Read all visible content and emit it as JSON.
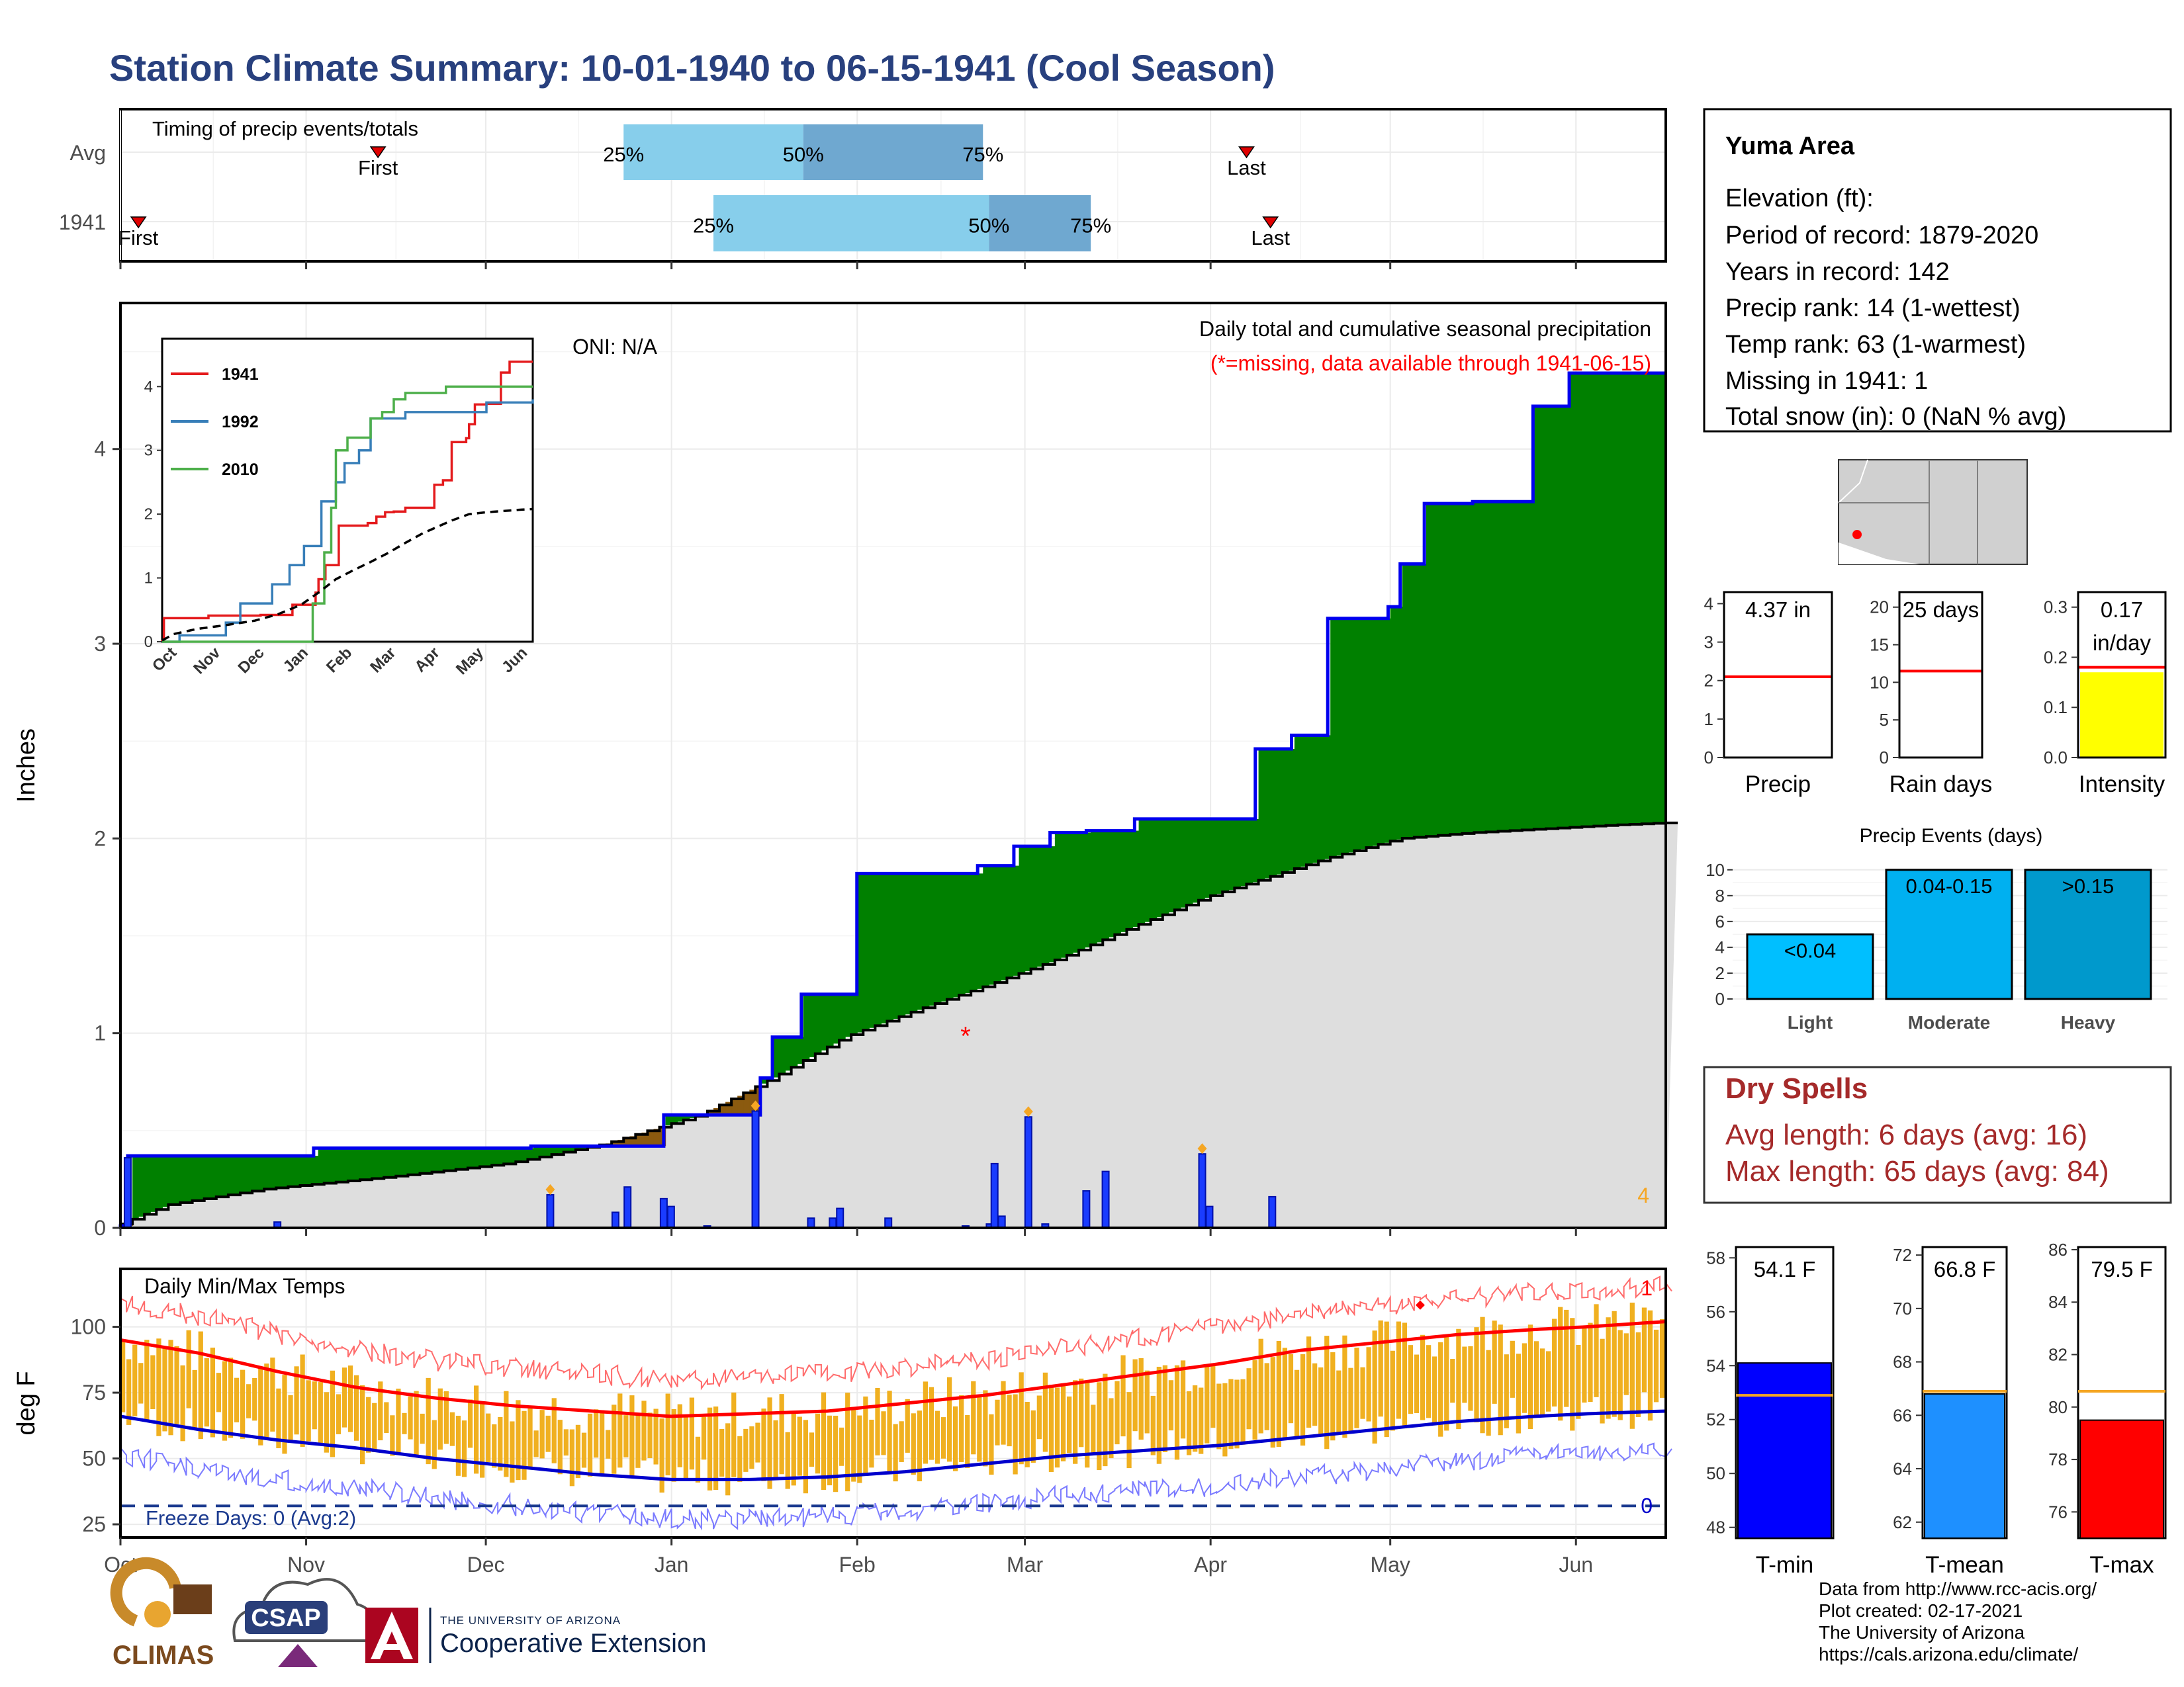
{
  "title": "Station Climate Summary: 10-01-1940 to 06-15-1941 (Cool Season)",
  "colors": {
    "title": "#28407e",
    "observed_fill": "#008000",
    "deficit_fill": "#8b5a0f",
    "normal_fill": "#dedede",
    "cum_line": "#0000ee",
    "daily_bar": "#1a3cff",
    "tmax_avg": "#ff0000",
    "tmin_avg": "#0000cc",
    "range_bars": "#f0b020",
    "dry": "#a52a2a"
  },
  "timing": {
    "label": "Timing of precip events/totals",
    "rows": [
      "Avg",
      "1941"
    ],
    "avg": {
      "first": "2000-11-13",
      "last": "2001-04-07",
      "q25": "2000-12-24",
      "q50": "2001-01-23",
      "q75": "2001-02-22",
      "labels": {
        "first": "First",
        "last": "Last",
        "q25": "25%",
        "q50": "50%",
        "q75": "75%"
      }
    },
    "year": {
      "first": "2000-10-04",
      "last": "2001-04-11",
      "q25": "2001-01-08",
      "q50": "2001-02-23",
      "q75": "2001-03-12",
      "labels": {
        "first": "First",
        "last": "Last",
        "q25": "25%",
        "q50": "50%",
        "q75": "75%"
      }
    }
  },
  "precip_panel": {
    "ylabel": "Inches",
    "oni": "ONI: N/A",
    "subtitle": "Daily total and cumulative seasonal precipitation",
    "missing_note": "(*=missing, data available through 1941-06-15)",
    "missing_count": "4",
    "yticks": [
      "0",
      "1",
      "2",
      "3",
      "4"
    ]
  },
  "temp_panel": {
    "title": "Daily Min/Max Temps",
    "ylabel": "deg F",
    "freeze": "Freeze Days: 0 (Avg:2)",
    "record_high_count": "1",
    "record_low_count": "0",
    "yticks": [
      "25",
      "50",
      "75",
      "100"
    ]
  },
  "months": [
    "Oct",
    "Nov",
    "Dec",
    "Jan",
    "Feb",
    "Mar",
    "Apr",
    "May",
    "Jun"
  ],
  "inset": {
    "legend": [
      "1941",
      "1992",
      "2010"
    ],
    "colors": [
      "#e41a1c",
      "#377eb8",
      "#4daf4a"
    ],
    "yticks": [
      "0",
      "1",
      "2",
      "3",
      "4"
    ],
    "months": [
      "Oct",
      "Nov",
      "Dec",
      "Jan",
      "Feb",
      "Mar",
      "Apr",
      "May",
      "Jun"
    ]
  },
  "station": {
    "name": "Yuma Area",
    "lines": [
      "Elevation (ft):",
      "Period of record: 1879-2020",
      "Years in record: 142",
      "Precip rank: 14 (1-wettest)",
      "Temp rank: 63 (1-warmest)",
      "Missing in 1941: 1",
      "Total snow (in): 0 (NaN % avg)"
    ]
  },
  "mini_bars": {
    "precip": {
      "label": "Precip",
      "value_text": "4.37 in",
      "value": 4.37,
      "avg": 2.1,
      "ymax": 4.3,
      "yticks": [
        "0",
        "1",
        "2",
        "3",
        "4"
      ]
    },
    "rain_days": {
      "label": "Rain days",
      "value_text": "25 days",
      "value": 25,
      "avg": 11.5,
      "ymax": 22,
      "yticks": [
        "0",
        "5",
        "10",
        "15",
        "20"
      ]
    },
    "intensity": {
      "label": "Intensity",
      "value_text_1": "0.17",
      "value_text_2": "in/day",
      "value": 0.17,
      "avg": 0.18,
      "ymax": 0.33,
      "yticks": [
        "0.0",
        "0.1",
        "0.2",
        "0.3"
      ]
    }
  },
  "events": {
    "title": "Precip Events (days)",
    "categories": [
      "Light",
      "Moderate",
      "Heavy"
    ],
    "labels": [
      "<0.04",
      "0.04-0.15",
      ">0.15"
    ],
    "values": [
      5,
      10,
      10
    ],
    "yticks": [
      "0",
      "2",
      "4",
      "6",
      "8",
      "10"
    ]
  },
  "dry_spells": {
    "title": "Dry Spells",
    "avg": "Avg length: 6 days (avg: 16)",
    "max": "Max length: 65 days (avg: 84)"
  },
  "temp_bars": [
    {
      "label": "T-min",
      "value_text": "54.1 F",
      "value": 54.1,
      "avg": 52.9,
      "ymin": 47.6,
      "ymax": 58.4,
      "yticks": [
        "48",
        "50",
        "52",
        "54",
        "56",
        "58"
      ],
      "color": "#0000ff"
    },
    {
      "label": "T-mean",
      "value_text": "66.8 F",
      "value": 66.8,
      "avg": 66.9,
      "ymin": 61.4,
      "ymax": 72.3,
      "yticks": [
        "62",
        "64",
        "66",
        "68",
        "70",
        "72"
      ],
      "color": "#1e90ff"
    },
    {
      "label": "T-max",
      "value_text": "79.5 F",
      "value": 79.5,
      "avg": 80.6,
      "ymin": 75.0,
      "ymax": 86.1,
      "yticks": [
        "76",
        "78",
        "80",
        "82",
        "84",
        "86"
      ],
      "color": "#ff0000"
    }
  ],
  "footer": [
    "Data from http://www.rcc-acis.org/",
    "Plot created: 02-17-2021",
    "The University of Arizona",
    "https://cals.arizona.edu/climate/"
  ],
  "logos": {
    "climas": "CLIMAS",
    "csap": "CSAP",
    "ua_small": "THE UNIVERSITY OF ARIZONA",
    "ua_big": "Cooperative Extension"
  },
  "chart_data": [
    {
      "type": "line",
      "title": "Daily total and cumulative seasonal precipitation",
      "ylabel": "Inches",
      "ylim": [
        0,
        4.75
      ],
      "x_start": "1940-10-01",
      "x_end": "1941-06-15",
      "cumulative_observed": [
        [
          0,
          0.01
        ],
        [
          3,
          0.37
        ],
        [
          80,
          0.41
        ],
        [
          170,
          0.42
        ],
        [
          225,
          0.58
        ],
        [
          265,
          0.77
        ],
        [
          270,
          0.98
        ],
        [
          282,
          1.2
        ],
        [
          305,
          1.82
        ],
        [
          355,
          1.86
        ],
        [
          370,
          1.96
        ],
        [
          385,
          2.03
        ],
        [
          400,
          2.04
        ],
        [
          420,
          2.1
        ],
        [
          470,
          2.46
        ],
        [
          485,
          2.53
        ],
        [
          500,
          3.13
        ],
        [
          525,
          3.19
        ],
        [
          530,
          3.41
        ],
        [
          540,
          3.72
        ],
        [
          560,
          3.73
        ],
        [
          585,
          4.22
        ],
        [
          600,
          4.39
        ],
        [
          625,
          4.39
        ],
        [
          640,
          4.39
        ]
      ],
      "cumulative_normal": [
        [
          0,
          0.02
        ],
        [
          20,
          0.12
        ],
        [
          60,
          0.2
        ],
        [
          110,
          0.26
        ],
        [
          160,
          0.33
        ],
        [
          200,
          0.43
        ],
        [
          240,
          0.58
        ],
        [
          270,
          0.77
        ],
        [
          300,
          0.98
        ],
        [
          330,
          1.12
        ],
        [
          360,
          1.25
        ],
        [
          390,
          1.39
        ],
        [
          420,
          1.55
        ],
        [
          450,
          1.7
        ],
        [
          480,
          1.82
        ],
        [
          500,
          1.9
        ],
        [
          530,
          2.0
        ],
        [
          560,
          2.03
        ],
        [
          590,
          2.05
        ],
        [
          620,
          2.07
        ],
        [
          640,
          2.08
        ]
      ],
      "daily_precip": [
        [
          3,
          0.36
        ],
        [
          65,
          0.03
        ],
        [
          178,
          0.17
        ],
        [
          205,
          0.08
        ],
        [
          210,
          0.21
        ],
        [
          225,
          0.15
        ],
        [
          228,
          0.11
        ],
        [
          243,
          0.01
        ],
        [
          263,
          0.6
        ],
        [
          286,
          0.05
        ],
        [
          295,
          0.05
        ],
        [
          298,
          0.1
        ],
        [
          318,
          0.05
        ],
        [
          350,
          0.01
        ],
        [
          360,
          0.02
        ],
        [
          362,
          0.33
        ],
        [
          365,
          0.06
        ],
        [
          376,
          0.57
        ],
        [
          383,
          0.02
        ],
        [
          400,
          0.19
        ],
        [
          408,
          0.29
        ],
        [
          448,
          0.38
        ],
        [
          451,
          0.11
        ],
        [
          477,
          0.16
        ]
      ],
      "missing_days": [
        350
      ]
    },
    {
      "type": "line",
      "title": "Daily Min/Max Temps",
      "ylabel": "deg F",
      "ylim": [
        20,
        122
      ],
      "avg_max": [
        [
          0,
          95
        ],
        [
          30,
          90
        ],
        [
          60,
          83
        ],
        [
          90,
          77
        ],
        [
          120,
          73
        ],
        [
          150,
          70
        ],
        [
          180,
          68
        ],
        [
          210,
          66
        ],
        [
          240,
          67
        ],
        [
          270,
          68
        ],
        [
          300,
          71
        ],
        [
          330,
          74
        ],
        [
          360,
          78
        ],
        [
          390,
          82
        ],
        [
          420,
          86
        ],
        [
          450,
          91
        ],
        [
          480,
          94
        ],
        [
          510,
          97
        ],
        [
          540,
          99
        ],
        [
          560,
          100
        ],
        [
          590,
          102
        ]
      ],
      "avg_min": [
        [
          0,
          66
        ],
        [
          30,
          61
        ],
        [
          60,
          57
        ],
        [
          90,
          54
        ],
        [
          120,
          50
        ],
        [
          150,
          47
        ],
        [
          180,
          44
        ],
        [
          210,
          42
        ],
        [
          240,
          42
        ],
        [
          270,
          43
        ],
        [
          300,
          45
        ],
        [
          330,
          48
        ],
        [
          360,
          51
        ],
        [
          390,
          53
        ],
        [
          420,
          55
        ],
        [
          450,
          58
        ],
        [
          480,
          61
        ],
        [
          510,
          64
        ],
        [
          540,
          66
        ],
        [
          560,
          67
        ],
        [
          590,
          68
        ]
      ],
      "freeze_line": 32
    }
  ]
}
